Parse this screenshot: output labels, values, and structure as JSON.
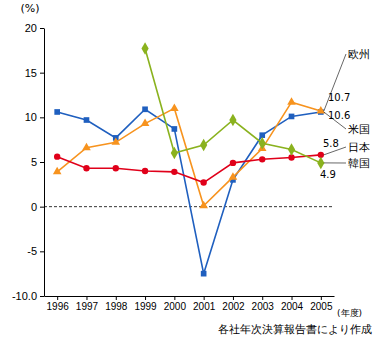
{
  "chart_data": {
    "type": "line",
    "ylabel": "(%)",
    "xlabel": "(年度)",
    "source": "各社年次決算報告書により作成",
    "categories": [
      "1996",
      "1997",
      "1998",
      "1999",
      "2000",
      "2001",
      "2002",
      "2003",
      "2004",
      "2005"
    ],
    "ylim": [
      -10,
      20
    ],
    "yticks": [
      {
        "value": -10,
        "label": "-10.0"
      },
      -5,
      0,
      5,
      10,
      15,
      20
    ],
    "grid": false,
    "series": [
      {
        "name": "米国",
        "color": "#1f5fbf",
        "marker": "square",
        "values": [
          10.6,
          9.7,
          7.7,
          10.9,
          8.7,
          -7.5,
          3.0,
          8.0,
          10.1,
          10.6
        ]
      },
      {
        "name": "欧州",
        "color": "#f7931e",
        "marker": "triangle",
        "values": [
          3.9,
          6.6,
          7.2,
          9.3,
          11.0,
          0.1,
          3.3,
          6.5,
          11.7,
          10.7
        ]
      },
      {
        "name": "日本",
        "color": "#e0001a",
        "marker": "circle",
        "values": [
          5.6,
          4.3,
          4.3,
          4.0,
          3.9,
          2.7,
          4.9,
          5.3,
          5.5,
          5.8
        ]
      },
      {
        "name": "韓国",
        "color": "#8ab21e",
        "marker": "diamond",
        "values": [
          null,
          null,
          null,
          17.7,
          6.0,
          6.9,
          9.7,
          7.1,
          6.4,
          4.9
        ]
      }
    ]
  }
}
